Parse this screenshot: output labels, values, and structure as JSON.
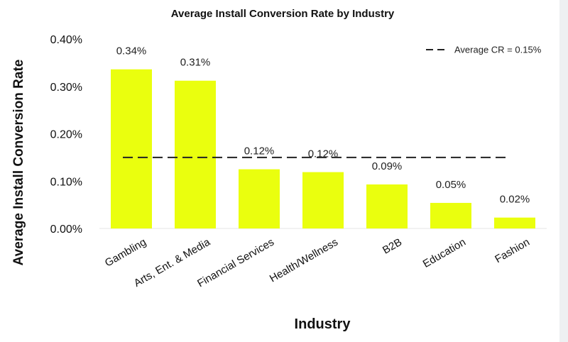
{
  "chart_data": {
    "type": "bar",
    "title": "Average Install Conversion Rate by Industry",
    "xlabel": "Industry",
    "ylabel": "Average Install Conversion Rate",
    "categories": [
      "Gambling",
      "Arts, Ent. & Media",
      "Financial Services",
      "Health/Wellness",
      "B2B",
      "Education",
      "Fashion"
    ],
    "values": [
      0.336,
      0.312,
      0.125,
      0.119,
      0.093,
      0.054,
      0.023
    ],
    "data_labels": [
      "0.34%",
      "0.31%",
      "0.12%",
      "0.12%",
      "0.09%",
      "0.05%",
      "0.02%"
    ],
    "value_unit": "%",
    "ylim": [
      0,
      0.4
    ],
    "yticks": [
      0,
      0.1,
      0.2,
      0.3,
      0.4
    ],
    "ytick_labels": [
      "0.00%",
      "0.10%",
      "0.20%",
      "0.30%",
      "0.40%"
    ],
    "reference_line": {
      "value": 0.15,
      "label": "Average CR = 0.15%",
      "style": "dashed",
      "color": "#222222"
    },
    "bar_color": "#eaff0e",
    "grid": false,
    "legend_position": "top-right"
  }
}
